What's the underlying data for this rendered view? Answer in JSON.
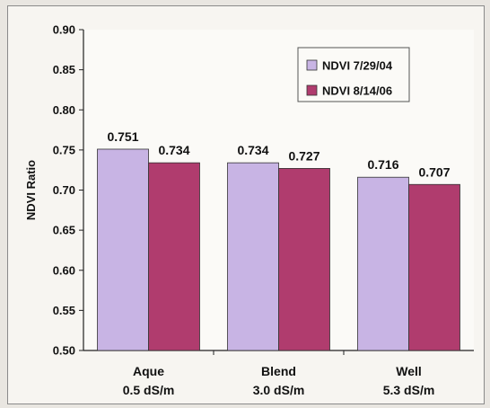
{
  "chart_data": {
    "type": "bar",
    "title": "",
    "xlabel": "",
    "ylabel": "NDVI Ratio",
    "ylim": [
      0.5,
      0.9
    ],
    "yticks": [
      "0.50",
      "0.55",
      "0.60",
      "0.65",
      "0.70",
      "0.75",
      "0.80",
      "0.85",
      "0.90"
    ],
    "categories": [
      {
        "line1": "Aque",
        "line2": "0.5 dS/m"
      },
      {
        "line1": "Blend",
        "line2": "3.0 dS/m"
      },
      {
        "line1": "Well",
        "line2": "5.3 dS/m"
      }
    ],
    "series": [
      {
        "name": "NDVI 7/29/04",
        "color": "#c8b4e4",
        "values": [
          0.751,
          0.734,
          0.716
        ],
        "labels": [
          "0.751",
          "0.734",
          "0.716"
        ]
      },
      {
        "name": "NDVI 8/14/06",
        "color": "#b03c6e",
        "values": [
          0.734,
          0.727,
          0.707
        ],
        "labels": [
          "0.734",
          "0.727",
          "0.707"
        ]
      }
    ],
    "legend_position": "top-right",
    "grid": false
  }
}
